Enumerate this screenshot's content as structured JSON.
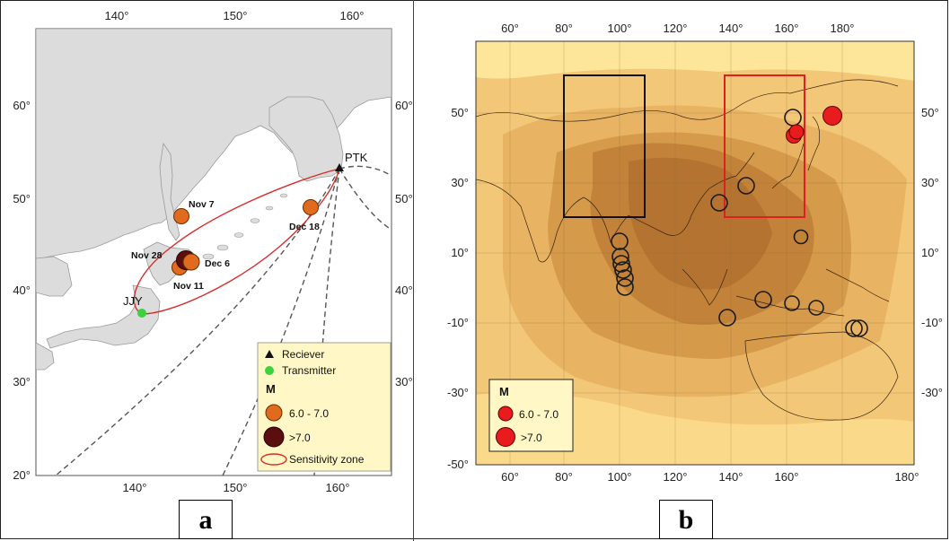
{
  "panel_a": {
    "label": "a",
    "lon_ticks": [
      "140°",
      "150°",
      "160°"
    ],
    "lat_ticks": [
      "60°",
      "50°",
      "40°",
      "30°",
      "20°"
    ],
    "stations": {
      "receiver": "PTK",
      "transmitter": "JJY"
    },
    "events": [
      {
        "label": "Nov 7",
        "lon": 144.5,
        "lat": 48.0,
        "class": "6.0-7.0"
      },
      {
        "label": "Dec 18",
        "lon": 156.3,
        "lat": 48.9,
        "class": "6.0-7.0"
      },
      {
        "label": "Nov 28",
        "lon": 144.5,
        "lat": 43.3,
        "class": ">7.0"
      },
      {
        "label": "Dec 6",
        "lon": 145.2,
        "lat": 42.9,
        "class": "6.0-7.0"
      },
      {
        "label": "Nov 11",
        "lon": 144.2,
        "lat": 42.2,
        "class": "6.0-7.0"
      }
    ],
    "legend": {
      "receiver": "Reciever",
      "transmitter": "Transmitter",
      "m_header": "M",
      "class1": "6.0 - 7.0",
      "class2": ">7.0",
      "zone": "Sensitivity zone"
    },
    "colors": {
      "land": "#dcdcdc",
      "sea": "#ffffff",
      "event_small": "#e06a1e",
      "event_large": "#5a0e0e",
      "zone": "#d62b2b",
      "transmitter": "#3ed13e",
      "legend_bg": "#fff8c6"
    }
  },
  "panel_b": {
    "label": "b",
    "lon_ticks": [
      "60°",
      "80°",
      "100°",
      "120°",
      "140°",
      "160°",
      "180°"
    ],
    "lat_ticks": [
      "50°",
      "30°",
      "10°",
      "-10°",
      "-30°",
      "-50°"
    ],
    "legend": {
      "m_header": "M",
      "class1": "6.0 - 7.0",
      "class2": ">7.0"
    },
    "colors": {
      "box_black": "#111111",
      "box_red": "#e02020",
      "event_red": "#e81c1c"
    }
  }
}
